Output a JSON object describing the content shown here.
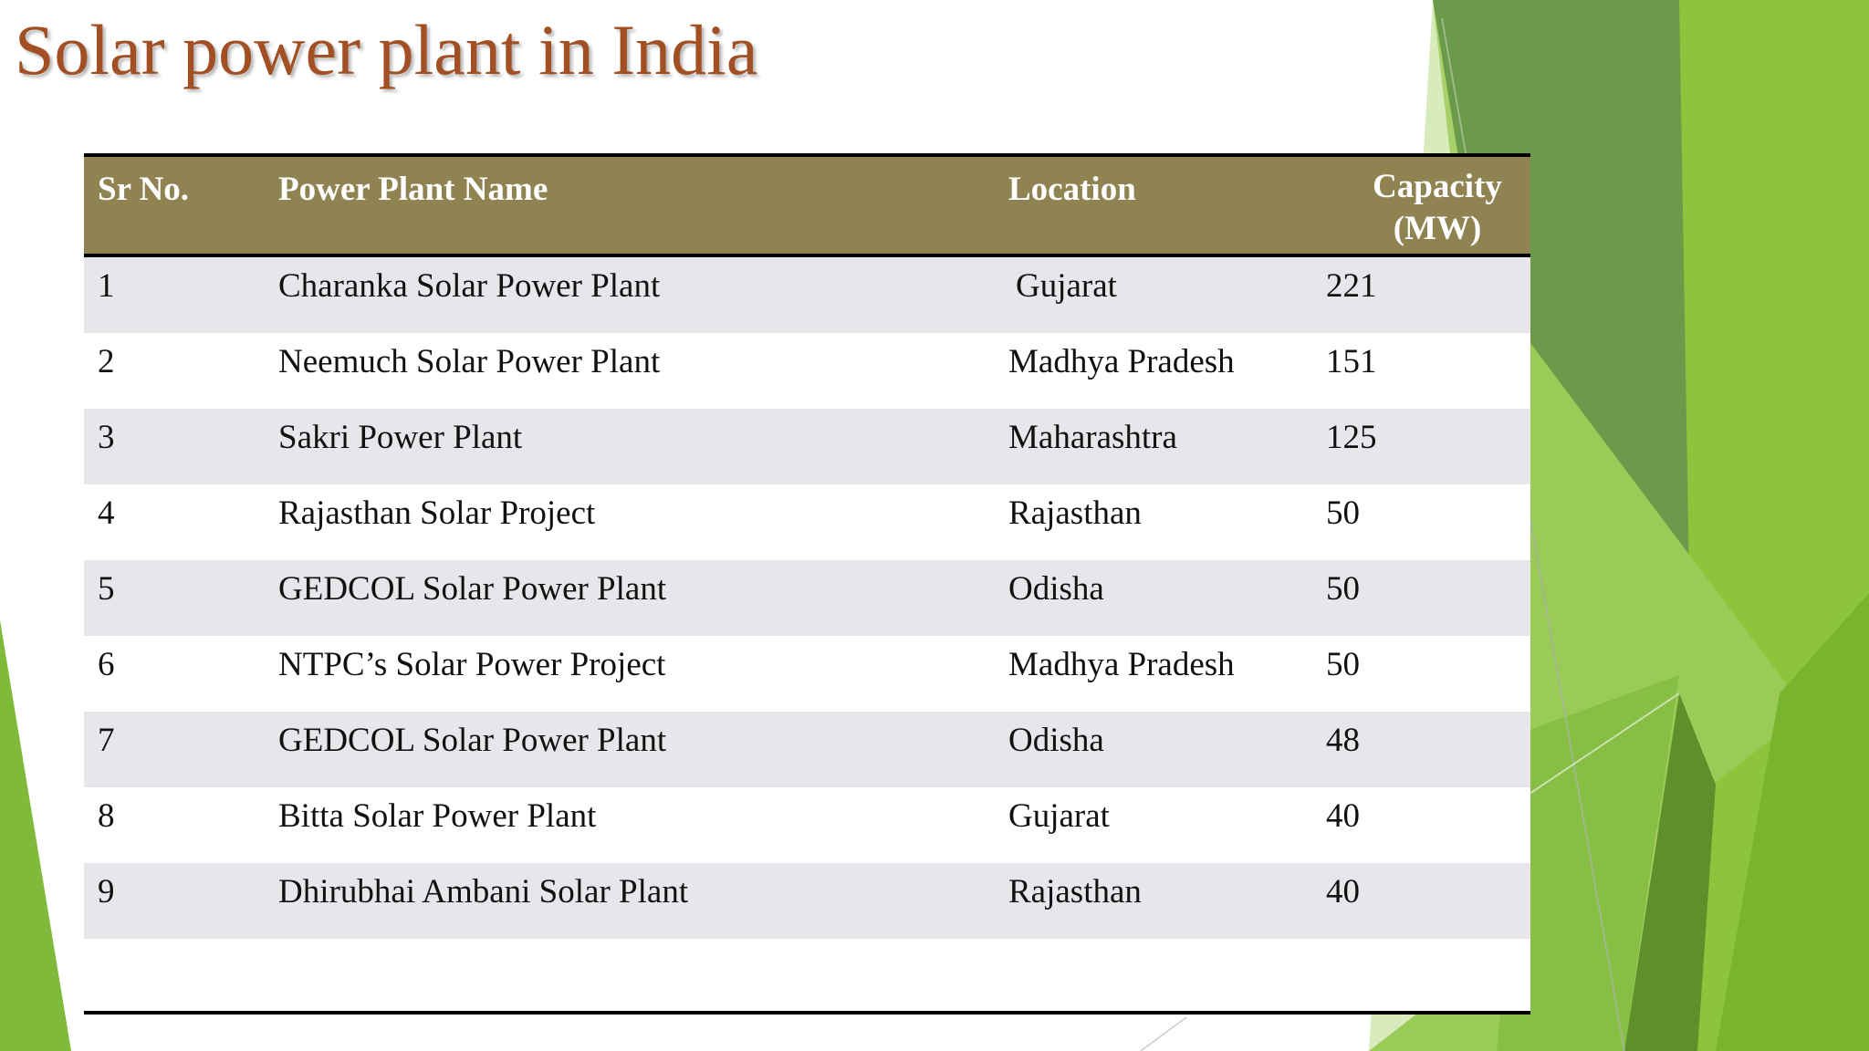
{
  "slide": {
    "title": "Solar power plant in India"
  },
  "table": {
    "headers": [
      "Sr No.",
      "Power Plant Name",
      "Location",
      "Capacity (MW)"
    ],
    "rows": [
      {
        "sr": "1",
        "name": "Charanka Solar Power Plant",
        "location": "Gujarat",
        "capacity": "221"
      },
      {
        "sr": "2",
        "name": "Neemuch Solar Power Plant",
        "location": "Madhya Pradesh",
        "capacity": "151"
      },
      {
        "sr": "3",
        "name": "Sakri Power Plant",
        "location": "Maharashtra",
        "capacity": "125"
      },
      {
        "sr": "4",
        "name": "Rajasthan Solar Project",
        "location": "Rajasthan",
        "capacity": "50"
      },
      {
        "sr": "5",
        "name": "GEDCOL Solar Power Plant",
        "location": "Odisha",
        "capacity": "50"
      },
      {
        "sr": "6",
        "name": "NTPC’s Solar Power Project",
        "location": "Madhya Pradesh",
        "capacity": "50"
      },
      {
        "sr": "7",
        "name": "GEDCOL Solar Power Plant",
        "location": "Odisha",
        "capacity": "48"
      },
      {
        "sr": "8",
        "name": "Bitta Solar Power Plant",
        "location": "Gujarat",
        "capacity": "40"
      },
      {
        "sr": "9",
        "name": "Dhirubhai Ambani Solar Plant",
        "location": "Rajasthan",
        "capacity": "40"
      }
    ]
  },
  "colors": {
    "title": "#a24f23",
    "header_bg": "#8f8352",
    "row_alt": "#e8e6ea",
    "accent_green": "#8dc63f",
    "dark_green": "#6a9a3c"
  }
}
